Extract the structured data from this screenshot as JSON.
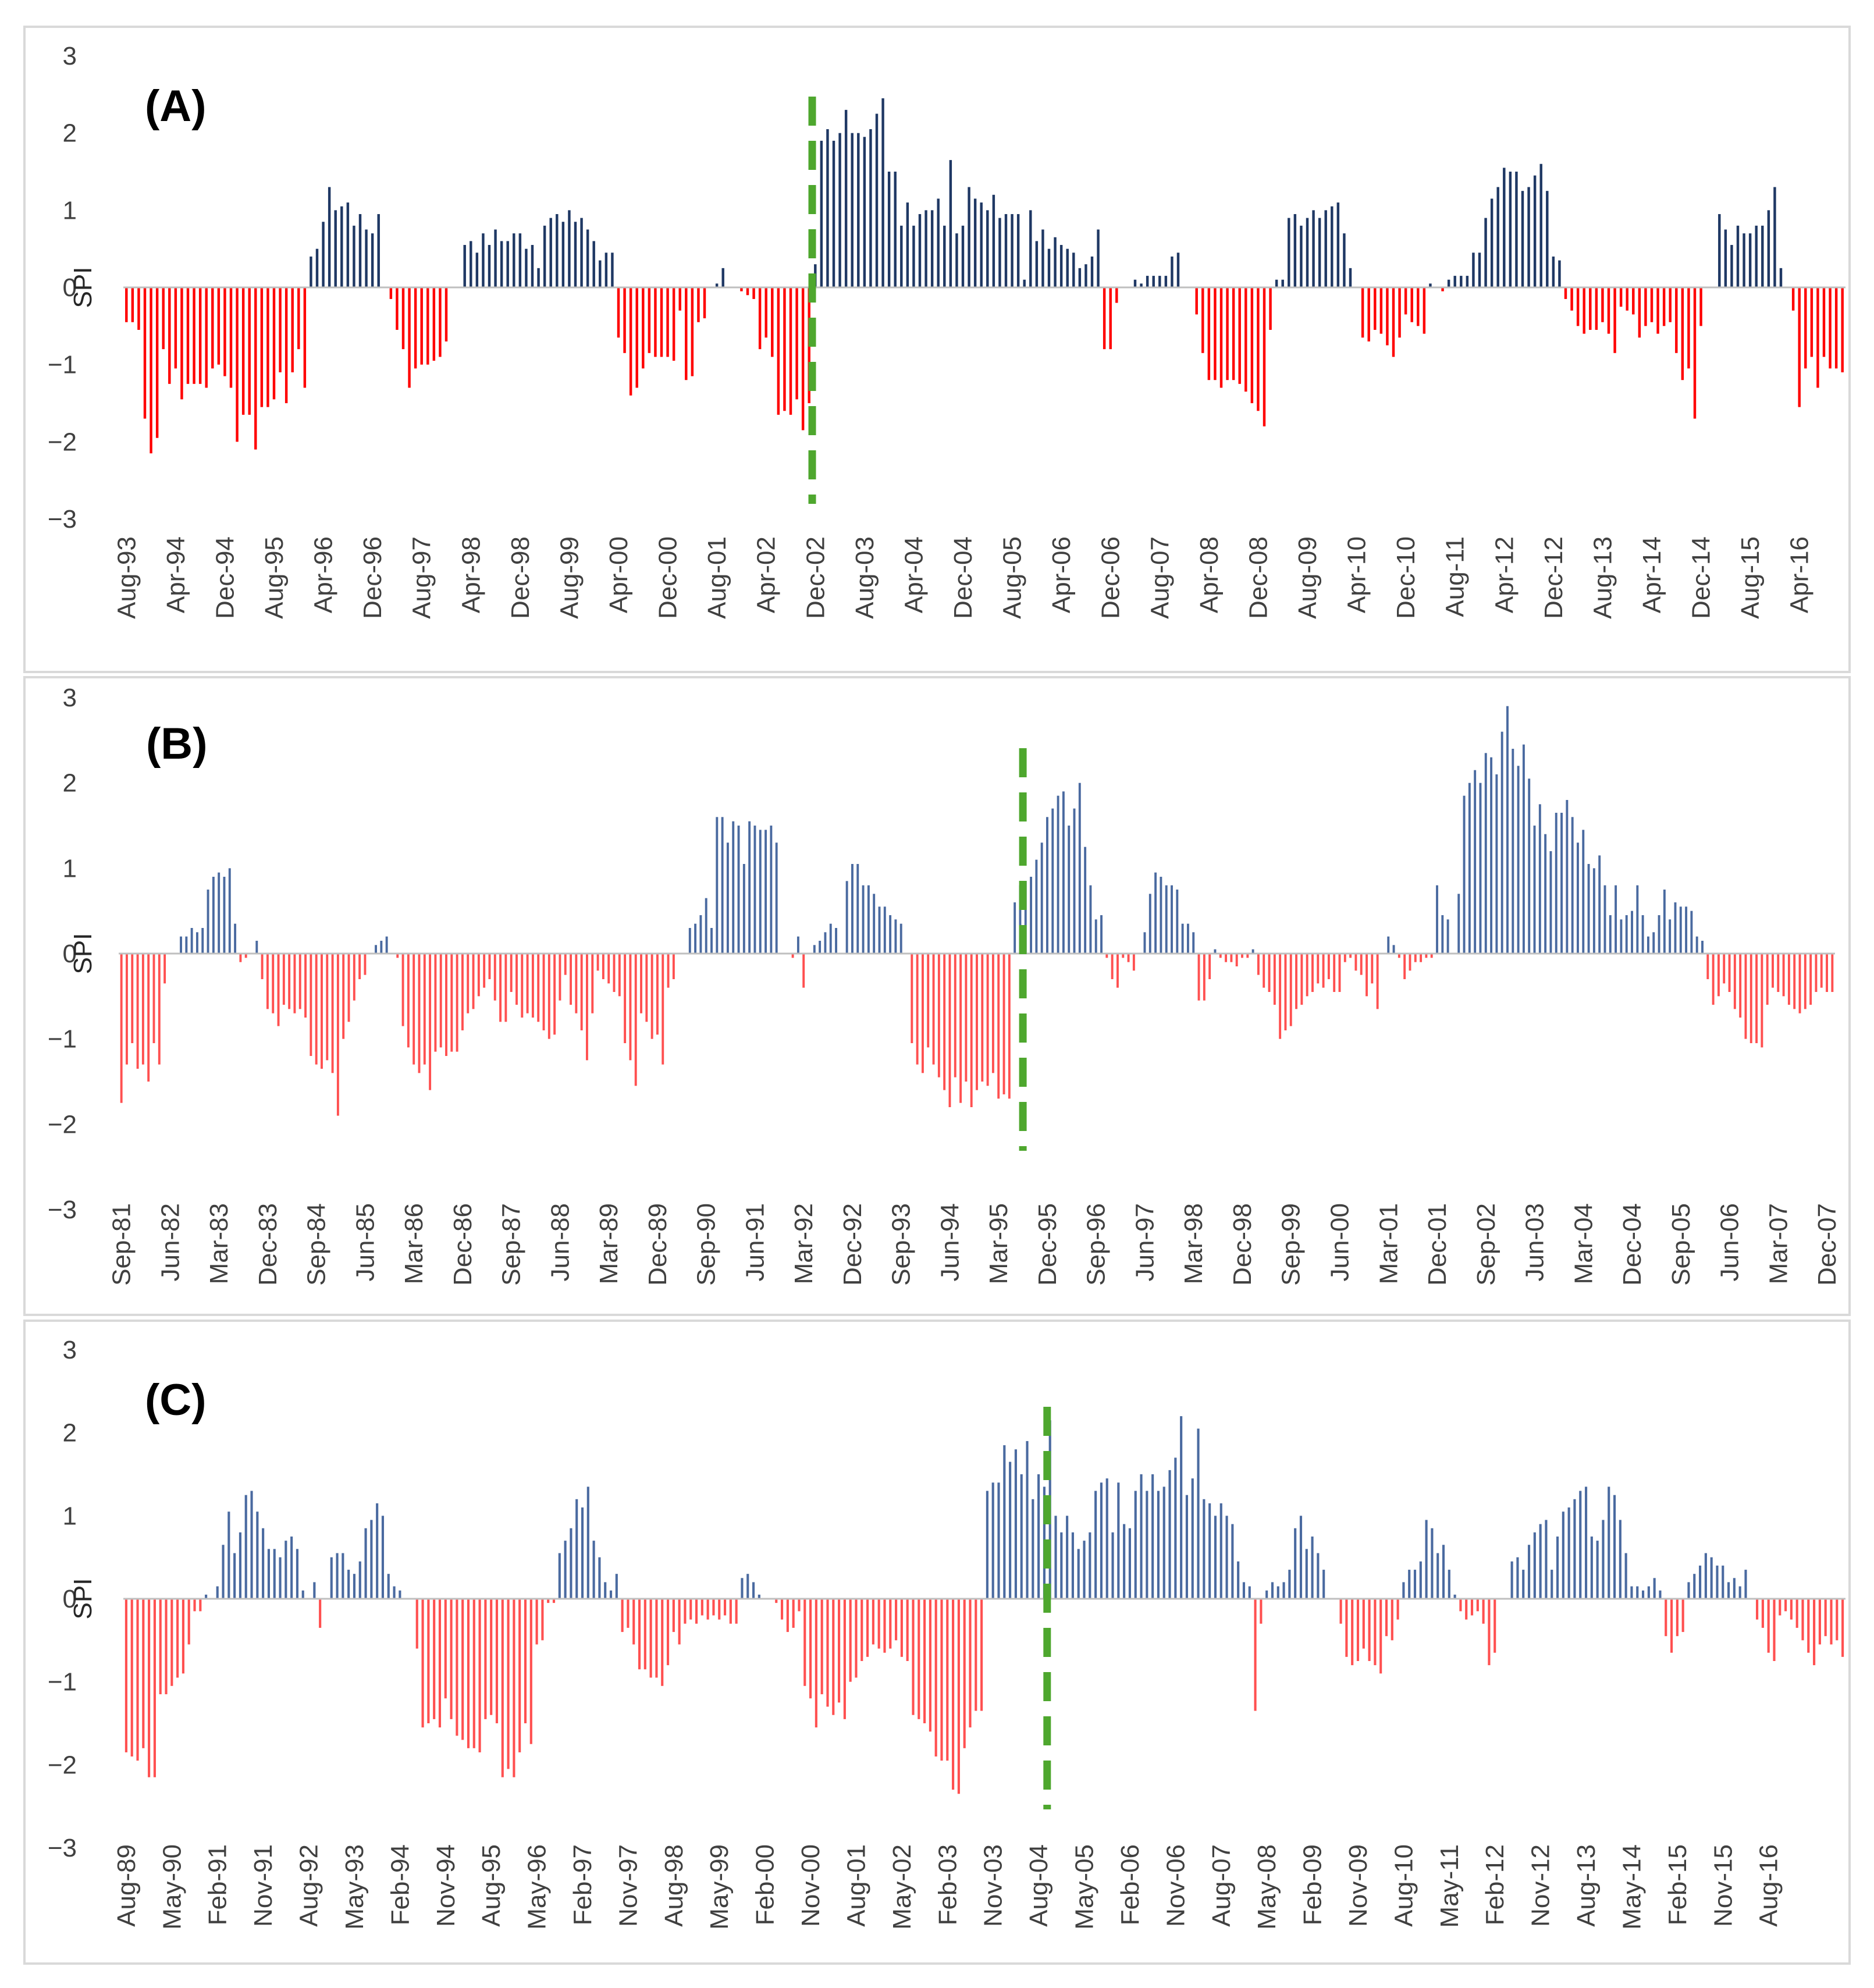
{
  "colors": {
    "positive": "#1f3864",
    "positive_light": "#4a6aa0",
    "negative": "#ff0000",
    "negative_light": "#ff5050",
    "change_point": "#4ea72e",
    "axis": "#bfbfbf",
    "text": "#404040"
  },
  "chart_data": [
    {
      "type": "bar",
      "panel": "(A)",
      "ylabel": "SPI",
      "ylim": [
        -3,
        3
      ],
      "yticks": [
        "3",
        "2",
        "1",
        "0",
        "−1",
        "−2",
        "−3"
      ],
      "start": "Aug-93",
      "change_point_index": 112,
      "tick_labels": [
        "Aug-93",
        "Apr-94",
        "Dec-94",
        "Aug-95",
        "Apr-96",
        "Dec-96",
        "Aug-97",
        "Apr-98",
        "Dec-98",
        "Aug-99",
        "Apr-00",
        "Dec-00",
        "Aug-01",
        "Apr-02",
        "Dec-02",
        "Aug-03",
        "Apr-04",
        "Dec-04",
        "Aug-05",
        "Apr-06",
        "Dec-06",
        "Aug-07",
        "Apr-08",
        "Dec-08",
        "Aug-09",
        "Apr-10",
        "Dec-10",
        "Aug-11",
        "Apr-12",
        "Dec-12",
        "Aug-13",
        "Apr-14",
        "Dec-14",
        "Aug-15",
        "Apr-16"
      ],
      "values": [
        -0.45,
        -0.45,
        -0.55,
        -1.7,
        -2.15,
        -1.95,
        -0.8,
        -1.25,
        -1.05,
        -1.45,
        -1.25,
        -1.25,
        -1.25,
        -1.3,
        -1.05,
        -1.0,
        -1.15,
        -1.3,
        -2.0,
        -1.65,
        -1.65,
        -2.1,
        -1.55,
        -1.55,
        -1.45,
        -1.1,
        -1.5,
        -1.1,
        -0.8,
        -1.3,
        0.4,
        0.5,
        0.85,
        1.3,
        1.0,
        1.05,
        1.1,
        0.8,
        0.95,
        0.75,
        0.7,
        0.95,
        0.0,
        -0.15,
        -0.55,
        -0.8,
        -1.3,
        -1.05,
        -1.0,
        -1.0,
        -0.95,
        -0.9,
        -0.7,
        0.0,
        0.0,
        0.55,
        0.6,
        0.45,
        0.7,
        0.55,
        0.75,
        0.6,
        0.6,
        0.7,
        0.7,
        0.5,
        0.55,
        0.25,
        0.8,
        0.9,
        0.95,
        0.85,
        1.0,
        0.85,
        0.9,
        0.75,
        0.6,
        0.35,
        0.45,
        0.45,
        -0.65,
        -0.85,
        -1.4,
        -1.3,
        -1.05,
        -0.85,
        -0.9,
        -0.9,
        -0.9,
        -0.95,
        -0.3,
        -1.2,
        -1.15,
        -0.45,
        -0.4,
        0.0,
        0.05,
        0.25,
        0.0,
        0.0,
        -0.05,
        -0.1,
        -0.15,
        -0.8,
        -0.65,
        -0.9,
        -1.65,
        -1.6,
        -1.65,
        -1.45,
        -1.85,
        -1.5,
        0.3,
        1.9,
        2.05,
        1.9,
        2.0,
        2.3,
        2.0,
        2.0,
        1.95,
        2.05,
        2.25,
        2.45,
        1.5,
        1.5,
        0.8,
        1.1,
        0.8,
        0.95,
        1.0,
        1.0,
        1.15,
        0.8,
        1.65,
        0.7,
        0.8,
        1.3,
        1.15,
        1.1,
        1.0,
        1.2,
        0.9,
        0.95,
        0.95,
        0.95,
        0.1,
        1.0,
        0.6,
        0.75,
        0.5,
        0.65,
        0.55,
        0.5,
        0.45,
        0.25,
        0.3,
        0.4,
        0.75,
        -0.8,
        -0.8,
        -0.2,
        0.0,
        0.0,
        0.1,
        0.05,
        0.15,
        0.15,
        0.15,
        0.15,
        0.4,
        0.45,
        0.0,
        0.0,
        -0.35,
        -0.85,
        -1.2,
        -1.2,
        -1.3,
        -1.2,
        -1.2,
        -1.25,
        -1.35,
        -1.5,
        -1.6,
        -1.8,
        -0.55,
        0.1,
        0.1,
        0.9,
        0.95,
        0.8,
        0.9,
        1.0,
        0.9,
        1.0,
        1.05,
        1.1,
        0.7,
        0.25,
        0.0,
        -0.65,
        -0.7,
        -0.55,
        -0.6,
        -0.75,
        -0.9,
        -0.65,
        -0.35,
        -0.45,
        -0.5,
        -0.6,
        0.05,
        0.0,
        -0.05,
        0.1,
        0.15,
        0.15,
        0.15,
        0.45,
        0.45,
        0.9,
        1.15,
        1.3,
        1.55,
        1.5,
        1.5,
        1.25,
        1.3,
        1.45,
        1.6,
        1.25,
        0.4,
        0.35,
        -0.15,
        -0.3,
        -0.5,
        -0.6,
        -0.55,
        -0.55,
        -0.45,
        -0.6,
        -0.85,
        -0.25,
        -0.3,
        -0.35,
        -0.65,
        -0.5,
        -0.45,
        -0.6,
        -0.5,
        -0.45,
        -0.85,
        -1.2,
        -1.05,
        -1.7,
        -0.5,
        0.0,
        0.0,
        0.95,
        0.75,
        0.55,
        0.8,
        0.7,
        0.7,
        0.8,
        0.8,
        1.0,
        1.3,
        0.25,
        0.0,
        -0.3,
        -1.55,
        -1.05,
        -0.9,
        -1.3,
        -0.9,
        -1.05,
        -1.05,
        -1.1
      ]
    },
    {
      "type": "bar",
      "panel": "(B)",
      "ylabel": "SPI",
      "ylim": [
        -3,
        3
      ],
      "yticks": [
        "3",
        "2",
        "1",
        "0",
        "−1",
        "−2",
        "−3"
      ],
      "start": "Sep-81",
      "change_point_index": 167,
      "tick_labels": [
        "Sep-81",
        "Jun-82",
        "Mar-83",
        "Dec-83",
        "Sep-84",
        "Jun-85",
        "Mar-86",
        "Dec-86",
        "Sep-87",
        "Jun-88",
        "Mar-89",
        "Dec-89",
        "Sep-90",
        "Jun-91",
        "Mar-92",
        "Dec-92",
        "Sep-93",
        "Jun-94",
        "Mar-95",
        "Dec-95",
        "Sep-96",
        "Jun-97",
        "Mar-98",
        "Dec-98",
        "Sep-99",
        "Jun-00",
        "Mar-01",
        "Dec-01",
        "Sep-02",
        "Jun-03",
        "Mar-04",
        "Dec-04",
        "Sep-05",
        "Jun-06",
        "Mar-07",
        "Dec-07"
      ],
      "values": [
        -1.75,
        -1.3,
        -1.05,
        -1.35,
        -1.3,
        -1.5,
        -1.05,
        -1.3,
        -0.35,
        0.0,
        0.0,
        0.2,
        0.2,
        0.3,
        0.25,
        0.3,
        0.75,
        0.9,
        0.95,
        0.9,
        1.0,
        0.35,
        -0.1,
        -0.05,
        0.0,
        0.15,
        -0.3,
        -0.65,
        -0.7,
        -0.85,
        -0.6,
        -0.65,
        -0.7,
        -0.65,
        -0.75,
        -1.2,
        -1.3,
        -1.35,
        -1.25,
        -1.4,
        -1.9,
        -1.0,
        -0.8,
        -0.55,
        -0.3,
        -0.25,
        0.0,
        0.1,
        0.15,
        0.2,
        0.0,
        -0.05,
        -0.85,
        -1.1,
        -1.3,
        -1.4,
        -1.3,
        -1.6,
        -1.15,
        -1.1,
        -1.2,
        -1.15,
        -1.15,
        -0.9,
        -0.7,
        -0.65,
        -0.5,
        -0.4,
        -0.3,
        -0.55,
        -0.8,
        -0.8,
        -0.45,
        -0.6,
        -0.75,
        -0.7,
        -0.75,
        -0.8,
        -0.9,
        -1.0,
        -0.95,
        -0.55,
        -0.25,
        -0.6,
        -0.7,
        -0.9,
        -1.25,
        -0.7,
        -0.2,
        -0.3,
        -0.35,
        -0.45,
        -0.5,
        -1.05,
        -1.25,
        -1.55,
        -0.7,
        -0.8,
        -1.0,
        -0.95,
        -1.3,
        -0.4,
        -0.3,
        0.0,
        0.0,
        0.3,
        0.35,
        0.45,
        0.65,
        0.3,
        1.6,
        1.6,
        1.3,
        1.55,
        1.5,
        1.05,
        1.55,
        1.5,
        1.45,
        1.45,
        1.5,
        1.3,
        0.0,
        0.0,
        -0.05,
        0.2,
        -0.4,
        0.0,
        0.1,
        0.15,
        0.25,
        0.35,
        0.3,
        0.0,
        0.85,
        1.05,
        1.05,
        0.8,
        0.8,
        0.7,
        0.55,
        0.55,
        0.45,
        0.4,
        0.35,
        0.0,
        -1.05,
        -1.3,
        -1.4,
        -1.1,
        -1.3,
        -1.45,
        -1.6,
        -1.8,
        -1.45,
        -1.75,
        -1.5,
        -1.8,
        -1.6,
        -1.5,
        -1.55,
        -1.4,
        -1.7,
        -1.65,
        -1.7,
        0.6,
        0.8,
        0.85,
        0.9,
        1.1,
        1.3,
        1.6,
        1.7,
        1.85,
        1.9,
        1.5,
        1.7,
        2.0,
        1.25,
        0.8,
        0.4,
        0.45,
        -0.05,
        -0.3,
        -0.4,
        -0.05,
        -0.1,
        -0.2,
        0.0,
        0.25,
        0.7,
        0.95,
        0.9,
        0.8,
        0.8,
        0.75,
        0.35,
        0.35,
        0.25,
        -0.55,
        -0.55,
        -0.3,
        0.05,
        -0.05,
        -0.1,
        -0.1,
        -0.15,
        -0.05,
        -0.05,
        0.05,
        -0.25,
        -0.4,
        -0.45,
        -0.6,
        -1.0,
        -0.9,
        -0.85,
        -0.65,
        -0.6,
        -0.5,
        -0.45,
        -0.35,
        -0.4,
        -0.3,
        -0.45,
        -0.45,
        -0.1,
        -0.05,
        -0.2,
        -0.25,
        -0.5,
        -0.35,
        -0.65,
        0.0,
        0.2,
        0.1,
        -0.05,
        -0.3,
        -0.2,
        -0.1,
        -0.1,
        -0.05,
        -0.05,
        0.8,
        0.45,
        0.4,
        0.0,
        0.7,
        1.85,
        2.0,
        2.15,
        2.0,
        2.35,
        2.3,
        2.1,
        2.6,
        2.9,
        2.4,
        2.2,
        2.45,
        2.05,
        1.5,
        1.75,
        1.4,
        1.2,
        1.65,
        1.65,
        1.8,
        1.6,
        1.3,
        1.45,
        1.05,
        1.0,
        1.15,
        0.8,
        0.45,
        0.8,
        0.4,
        0.45,
        0.5,
        0.8,
        0.45,
        0.2,
        0.25,
        0.45,
        0.75,
        0.4,
        0.6,
        0.55,
        0.55,
        0.5,
        0.2,
        0.15,
        -0.3,
        -0.6,
        -0.5,
        -0.35,
        -0.45,
        -0.65,
        -0.75,
        -1.0,
        -1.05,
        -1.05,
        -1.1,
        -0.6,
        -0.4,
        -0.45,
        -0.5,
        -0.6,
        -0.65,
        -0.7,
        -0.65,
        -0.6,
        -0.45,
        -0.4,
        -0.45,
        -0.45
      ]
    },
    {
      "type": "bar",
      "panel": "(C)",
      "ylabel": "SPI",
      "ylim": [
        -3,
        3
      ],
      "yticks": [
        "3",
        "2",
        "1",
        "0",
        "−1",
        "−2",
        "−3"
      ],
      "start": "Aug-89",
      "change_point_index": 162,
      "tick_labels": [
        "Aug-89",
        "May-90",
        "Feb-91",
        "Nov-91",
        "Aug-92",
        "May-93",
        "Feb-94",
        "Nov-94",
        "Aug-95",
        "May-96",
        "Feb-97",
        "Nov-97",
        "Aug-98",
        "May-99",
        "Feb-00",
        "Nov-00",
        "Aug-01",
        "May-02",
        "Feb-03",
        "Nov-03",
        "Aug-04",
        "May-05",
        "Feb-06",
        "Nov-06",
        "Aug-07",
        "May-08",
        "Feb-09",
        "Nov-09",
        "Aug-10",
        "May-11",
        "Feb-12",
        "Nov-12",
        "Aug-13",
        "May-14",
        "Feb-15",
        "Nov-15",
        "Aug-16"
      ],
      "values": [
        -1.85,
        -1.9,
        -1.95,
        -1.8,
        -2.15,
        -2.15,
        -1.15,
        -1.15,
        -1.05,
        -0.95,
        -0.9,
        -0.55,
        -0.15,
        -0.15,
        0.05,
        0.0,
        0.15,
        0.65,
        1.05,
        0.55,
        0.8,
        1.25,
        1.3,
        1.05,
        0.85,
        0.6,
        0.6,
        0.5,
        0.7,
        0.75,
        0.6,
        0.1,
        0.0,
        0.2,
        -0.35,
        0.0,
        0.5,
        0.55,
        0.55,
        0.35,
        0.3,
        0.45,
        0.85,
        0.95,
        1.15,
        1.0,
        0.3,
        0.15,
        0.1,
        0.0,
        0.0,
        -0.6,
        -1.55,
        -1.5,
        -1.45,
        -1.55,
        -1.2,
        -1.45,
        -1.65,
        -1.7,
        -1.8,
        -1.8,
        -1.85,
        -1.45,
        -1.4,
        -1.5,
        -2.15,
        -2.05,
        -2.15,
        -1.85,
        -1.5,
        -1.75,
        -0.55,
        -0.5,
        -0.05,
        -0.05,
        0.55,
        0.7,
        0.85,
        1.2,
        1.1,
        1.35,
        0.7,
        0.5,
        0.2,
        0.1,
        0.3,
        -0.4,
        -0.35,
        -0.55,
        -0.85,
        -0.85,
        -0.95,
        -0.95,
        -1.05,
        -0.8,
        -0.4,
        -0.55,
        -0.3,
        -0.25,
        -0.3,
        -0.2,
        -0.25,
        -0.2,
        -0.25,
        -0.2,
        -0.3,
        -0.3,
        0.25,
        0.3,
        0.2,
        0.05,
        0.0,
        0.0,
        -0.05,
        -0.25,
        -0.4,
        -0.35,
        -0.15,
        -1.05,
        -1.2,
        -1.55,
        -1.15,
        -1.3,
        -1.4,
        -1.25,
        -1.45,
        -1.0,
        -0.95,
        -0.75,
        -0.7,
        -0.55,
        -0.6,
        -0.65,
        -0.6,
        -0.5,
        -0.7,
        -0.75,
        -1.4,
        -1.45,
        -1.5,
        -1.6,
        -1.9,
        -1.95,
        -1.95,
        -2.3,
        -2.35,
        -1.8,
        -1.55,
        -1.35,
        -1.35,
        1.3,
        1.4,
        1.4,
        1.85,
        1.65,
        1.8,
        1.5,
        1.9,
        1.2,
        1.5,
        1.35,
        2.15,
        1.0,
        0.8,
        1.0,
        0.8,
        0.6,
        0.7,
        0.8,
        1.3,
        1.4,
        1.45,
        0.8,
        1.4,
        0.9,
        0.85,
        1.3,
        1.5,
        1.3,
        1.5,
        1.3,
        1.35,
        1.55,
        1.7,
        2.2,
        1.25,
        1.45,
        2.05,
        1.2,
        1.15,
        1.0,
        1.15,
        1.0,
        0.9,
        0.45,
        0.2,
        0.15,
        -1.35,
        -0.3,
        0.1,
        0.2,
        0.15,
        0.2,
        0.35,
        0.85,
        1.0,
        0.6,
        0.75,
        0.55,
        0.35,
        0.0,
        0.0,
        -0.3,
        -0.7,
        -0.8,
        -0.75,
        -0.6,
        -0.75,
        -0.8,
        -0.9,
        -0.45,
        -0.5,
        -0.25,
        0.2,
        0.35,
        0.35,
        0.45,
        0.95,
        0.85,
        0.55,
        0.65,
        0.35,
        0.05,
        -0.15,
        -0.25,
        -0.2,
        -0.15,
        -0.3,
        -0.8,
        -0.65,
        0.0,
        0.0,
        0.45,
        0.5,
        0.35,
        0.65,
        0.8,
        0.9,
        0.95,
        0.35,
        0.75,
        1.05,
        1.1,
        1.2,
        1.3,
        1.35,
        0.75,
        0.7,
        0.95,
        1.35,
        1.25,
        0.95,
        0.55,
        0.15,
        0.15,
        0.1,
        0.15,
        0.25,
        0.1,
        -0.45,
        -0.65,
        -0.45,
        -0.4,
        0.2,
        0.3,
        0.4,
        0.55,
        0.5,
        0.4,
        0.4,
        0.2,
        0.25,
        0.15,
        0.35,
        0.0,
        -0.25,
        -0.35,
        -0.65,
        -0.75,
        -0.2,
        -0.15,
        -0.25,
        -0.35,
        -0.5,
        -0.65,
        -0.8,
        -0.55,
        -0.45,
        -0.55,
        -0.5,
        -0.7
      ]
    }
  ]
}
